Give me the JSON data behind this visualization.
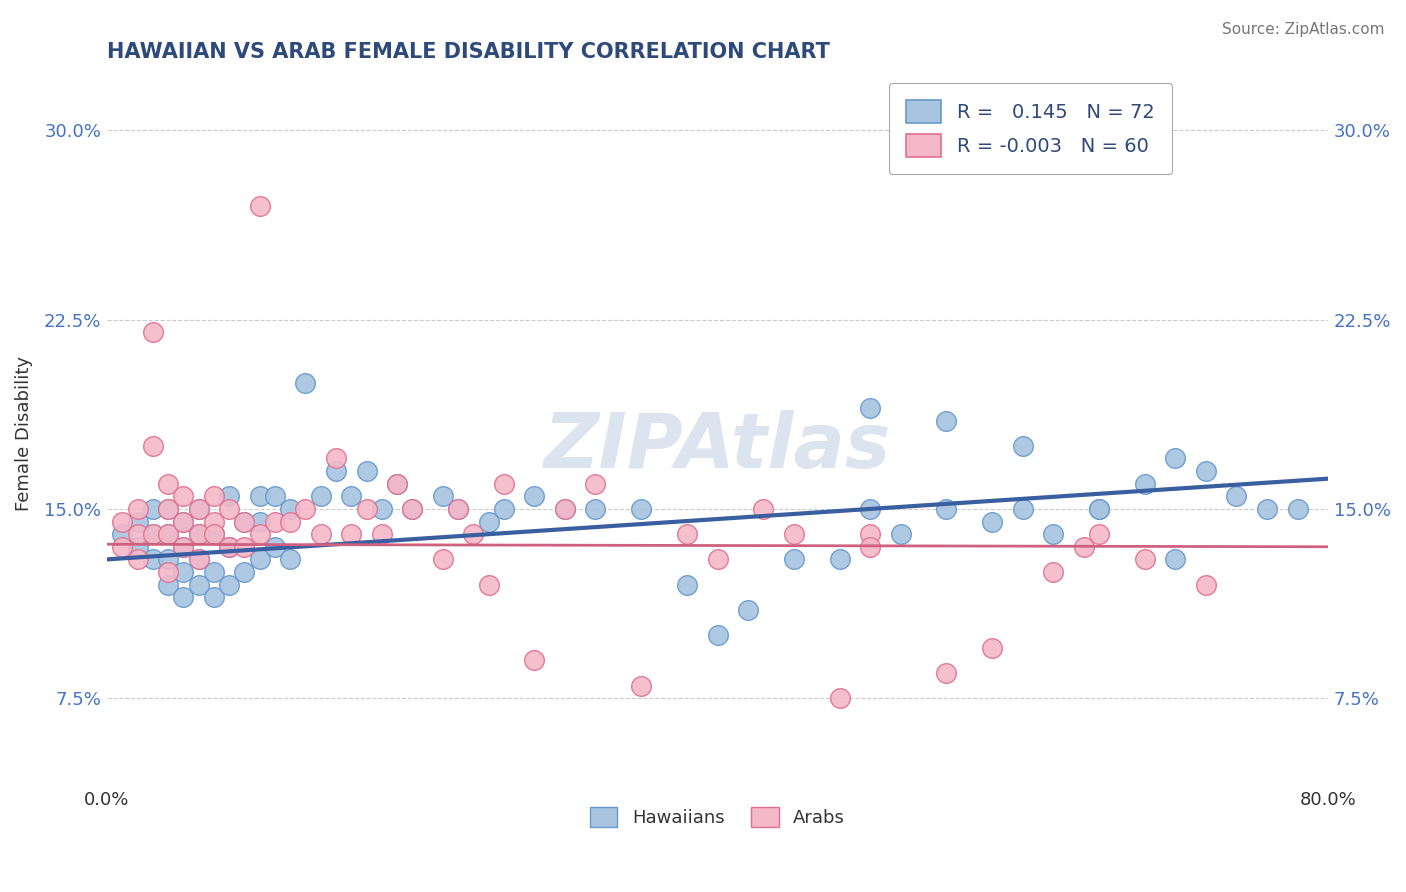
{
  "title": "HAWAIIAN VS ARAB FEMALE DISABILITY CORRELATION CHART",
  "source": "Source: ZipAtlas.com",
  "ylabel": "Female Disability",
  "xlim": [
    0.0,
    0.8
  ],
  "ylim": [
    0.04,
    0.32
  ],
  "yticks": [
    0.075,
    0.15,
    0.225,
    0.3
  ],
  "ytick_labels": [
    "7.5%",
    "15.0%",
    "22.5%",
    "30.0%"
  ],
  "xticks": [
    0.0,
    0.8
  ],
  "xtick_labels": [
    "0.0%",
    "80.0%"
  ],
  "hawaiian_color": "#a8c4e0",
  "hawaiian_edge": "#6699cc",
  "arab_color": "#f4b8c8",
  "arab_edge": "#e07090",
  "line_hawaiian": "#3a5fa0",
  "line_arab": "#d06080",
  "R_hawaiian": 0.145,
  "N_hawaiian": 72,
  "R_arab": -0.003,
  "N_arab": 60,
  "hawaiian_x": [
    0.01,
    0.02,
    0.02,
    0.03,
    0.03,
    0.03,
    0.04,
    0.04,
    0.04,
    0.04,
    0.05,
    0.05,
    0.05,
    0.05,
    0.06,
    0.06,
    0.06,
    0.06,
    0.07,
    0.07,
    0.07,
    0.08,
    0.08,
    0.08,
    0.09,
    0.09,
    0.1,
    0.1,
    0.1,
    0.11,
    0.11,
    0.12,
    0.12,
    0.13,
    0.14,
    0.15,
    0.16,
    0.17,
    0.18,
    0.19,
    0.2,
    0.22,
    0.23,
    0.25,
    0.26,
    0.28,
    0.3,
    0.32,
    0.35,
    0.38,
    0.4,
    0.42,
    0.45,
    0.48,
    0.5,
    0.52,
    0.55,
    0.58,
    0.6,
    0.62,
    0.65,
    0.68,
    0.7,
    0.72,
    0.74,
    0.76,
    0.78,
    0.5,
    0.55,
    0.6,
    0.65,
    0.7
  ],
  "hawaiian_y": [
    0.14,
    0.135,
    0.145,
    0.13,
    0.14,
    0.15,
    0.12,
    0.13,
    0.14,
    0.15,
    0.115,
    0.125,
    0.135,
    0.145,
    0.12,
    0.13,
    0.14,
    0.15,
    0.115,
    0.125,
    0.14,
    0.12,
    0.135,
    0.155,
    0.125,
    0.145,
    0.13,
    0.145,
    0.155,
    0.135,
    0.155,
    0.13,
    0.15,
    0.2,
    0.155,
    0.165,
    0.155,
    0.165,
    0.15,
    0.16,
    0.15,
    0.155,
    0.15,
    0.145,
    0.15,
    0.155,
    0.15,
    0.15,
    0.15,
    0.12,
    0.1,
    0.11,
    0.13,
    0.13,
    0.15,
    0.14,
    0.15,
    0.145,
    0.15,
    0.14,
    0.15,
    0.16,
    0.17,
    0.165,
    0.155,
    0.15,
    0.15,
    0.19,
    0.185,
    0.175,
    0.15,
    0.13
  ],
  "arab_x": [
    0.01,
    0.01,
    0.02,
    0.02,
    0.02,
    0.03,
    0.03,
    0.03,
    0.04,
    0.04,
    0.04,
    0.04,
    0.05,
    0.05,
    0.05,
    0.06,
    0.06,
    0.06,
    0.07,
    0.07,
    0.07,
    0.08,
    0.08,
    0.09,
    0.09,
    0.1,
    0.1,
    0.11,
    0.12,
    0.13,
    0.14,
    0.15,
    0.16,
    0.17,
    0.18,
    0.19,
    0.2,
    0.22,
    0.23,
    0.24,
    0.25,
    0.26,
    0.28,
    0.3,
    0.32,
    0.35,
    0.38,
    0.4,
    0.43,
    0.45,
    0.48,
    0.5,
    0.55,
    0.58,
    0.62,
    0.64,
    0.65,
    0.68,
    0.72,
    0.5
  ],
  "arab_y": [
    0.135,
    0.145,
    0.13,
    0.14,
    0.15,
    0.22,
    0.175,
    0.14,
    0.125,
    0.14,
    0.15,
    0.16,
    0.135,
    0.145,
    0.155,
    0.14,
    0.15,
    0.13,
    0.145,
    0.155,
    0.14,
    0.15,
    0.135,
    0.145,
    0.135,
    0.27,
    0.14,
    0.145,
    0.145,
    0.15,
    0.14,
    0.17,
    0.14,
    0.15,
    0.14,
    0.16,
    0.15,
    0.13,
    0.15,
    0.14,
    0.12,
    0.16,
    0.09,
    0.15,
    0.16,
    0.08,
    0.14,
    0.13,
    0.15,
    0.14,
    0.075,
    0.14,
    0.085,
    0.095,
    0.125,
    0.135,
    0.14,
    0.13,
    0.12,
    0.135
  ],
  "hawaiian_line_x": [
    0.0,
    0.8
  ],
  "hawaiian_line_y": [
    0.13,
    0.162
  ],
  "arab_line_x": [
    0.0,
    0.8
  ],
  "arab_line_y": [
    0.136,
    0.135
  ],
  "background_color": "#ffffff",
  "grid_color": "#cccccc",
  "title_color": "#2d4a7a",
  "source_color": "#777777",
  "watermark_text": "ZIPAtlas",
  "watermark_color": "#dce4f0",
  "legend_text_color": "#2d4a7a",
  "legend_val_color": "#2d9c5a",
  "bottom_label_color": "#333333"
}
